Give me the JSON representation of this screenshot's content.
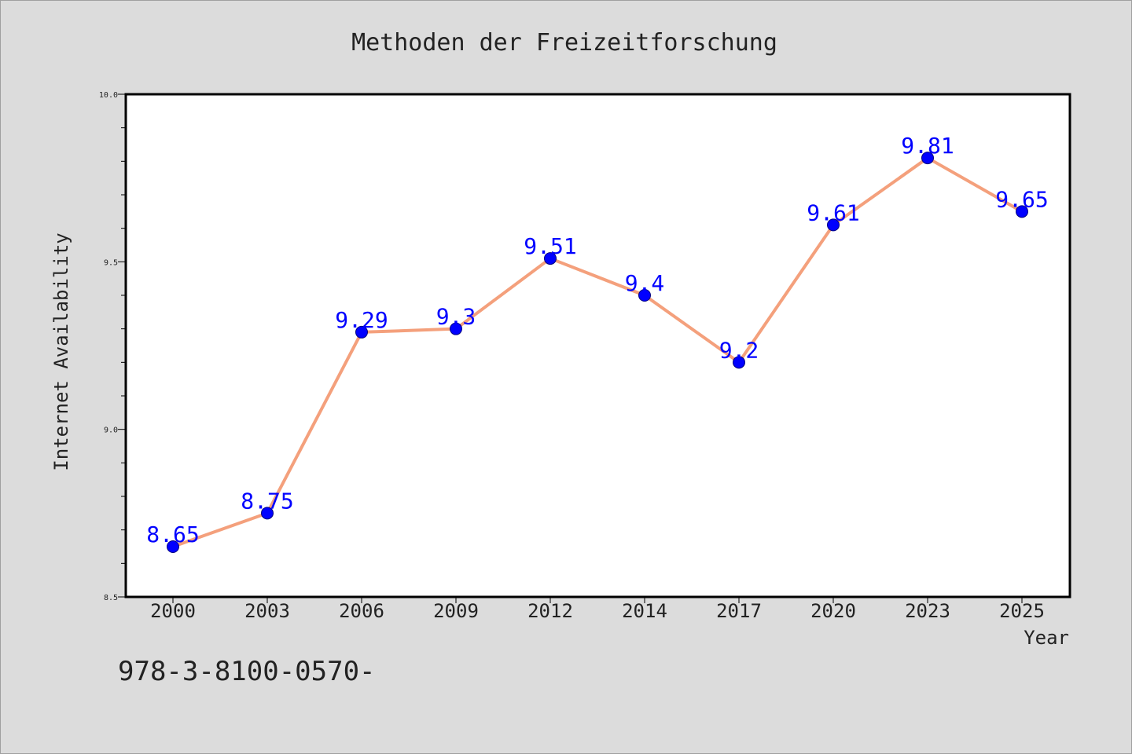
{
  "colors": {
    "background": "#dcdcdc",
    "plot_background": "#ffffff",
    "line": "#f4a07c",
    "marker": "#0000ff",
    "data_label": "#0000ff",
    "text": "#222222"
  },
  "footer": {
    "text": "978-3-8100-0570-"
  },
  "chart_data": {
    "type": "line",
    "title": "Methoden der Freizeitforschung",
    "xlabel": "Year",
    "ylabel": "Internet Availability",
    "categories": [
      "2000",
      "2003",
      "2006",
      "2009",
      "2012",
      "2014",
      "2017",
      "2020",
      "2023",
      "2025"
    ],
    "series": [
      {
        "values": [
          8.65,
          8.75,
          9.29,
          9.3,
          9.51,
          9.4,
          9.2,
          9.61,
          9.81,
          9.65
        ],
        "labels": [
          "8.65",
          "8.75",
          "9.29",
          "9.3",
          "9.51",
          "9.4",
          "9.2",
          "9.61",
          "9.81",
          "9.65"
        ]
      }
    ],
    "ylim": [
      8.5,
      10.0
    ],
    "yticks": [
      8.5,
      9.0,
      9.5,
      10.0
    ],
    "ytick_labels": [
      "8.5",
      "9.0",
      "9.5",
      "10.0"
    ],
    "y_minor_step": 0.1,
    "grid": false,
    "legend": "none"
  }
}
